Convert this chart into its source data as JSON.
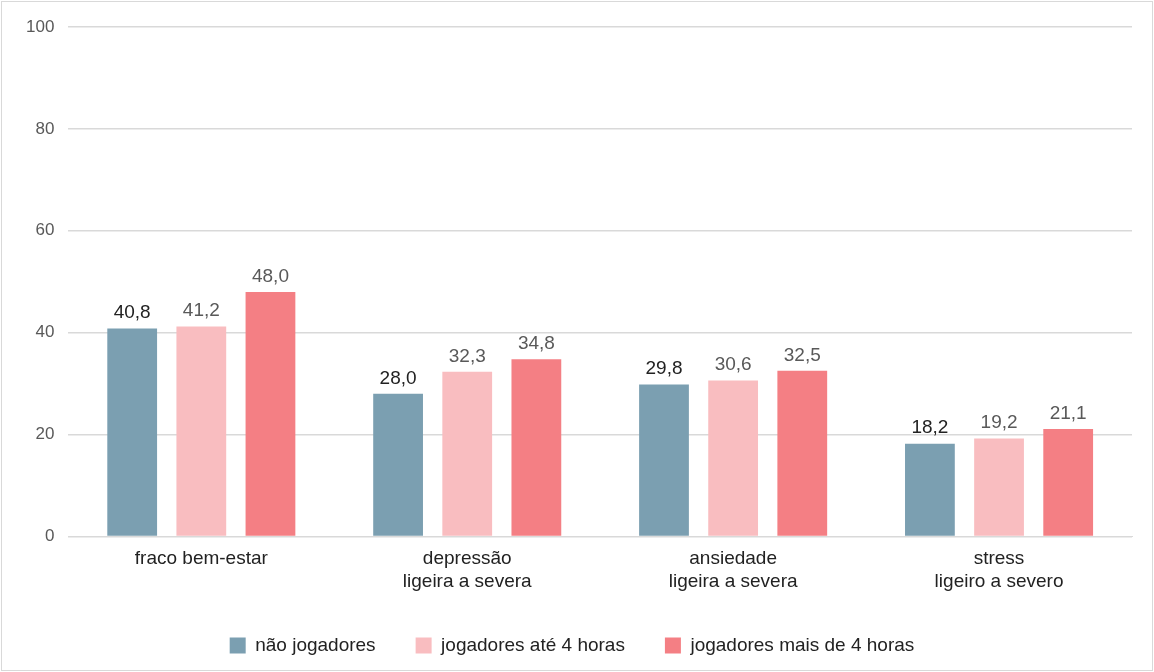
{
  "chart_data": {
    "type": "bar",
    "categories": [
      "fraco bem-estar",
      "depressão\nligeira a severa",
      "ansiedade\nligeira a severa",
      "stress\nligeiro a severo"
    ],
    "series": [
      {
        "name": "não jogadores",
        "color": "#7b9fb1",
        "values": [
          40.8,
          28.0,
          29.8,
          18.2
        ],
        "value_labels": [
          "40,8",
          "28,0",
          "29,8",
          "18,2"
        ]
      },
      {
        "name": "jogadores até 4 horas",
        "color": "#f9bdc0",
        "values": [
          41.2,
          32.3,
          30.6,
          19.2
        ],
        "value_labels": [
          "41,2",
          "32,3",
          "30,6",
          "19,2"
        ]
      },
      {
        "name": "jogadores mais de 4 horas",
        "color": "#f47f84",
        "values": [
          48.0,
          34.8,
          32.5,
          21.1
        ],
        "value_labels": [
          "48,0",
          "34,8",
          "32,5",
          "21,1"
        ]
      }
    ],
    "ylim": [
      0,
      100
    ],
    "yticks": [
      0,
      20,
      40,
      60,
      80,
      100
    ],
    "grid": "y",
    "legend": "bottom"
  }
}
